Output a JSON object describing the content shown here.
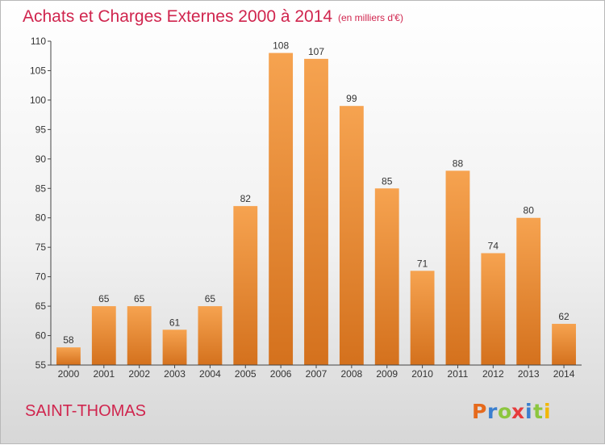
{
  "chart_data": {
    "type": "bar",
    "title": "Achats et Charges Externes 2000 à 2014",
    "subtitle": "(en milliers d'€)",
    "categories": [
      "2000",
      "2001",
      "2002",
      "2003",
      "2004",
      "2005",
      "2006",
      "2007",
      "2008",
      "2009",
      "2010",
      "2011",
      "2012",
      "2013",
      "2014"
    ],
    "values": [
      58,
      65,
      65,
      61,
      65,
      82,
      108,
      107,
      99,
      85,
      71,
      88,
      74,
      80,
      62
    ],
    "ylim": [
      55,
      110
    ],
    "yticks": [
      55,
      60,
      65,
      70,
      75,
      80,
      85,
      90,
      95,
      100,
      105,
      110
    ],
    "grid": false,
    "bar_color": "#ee8a2e"
  },
  "footer": {
    "commune": "SAINT-THOMAS",
    "logo": "Proxiti"
  }
}
